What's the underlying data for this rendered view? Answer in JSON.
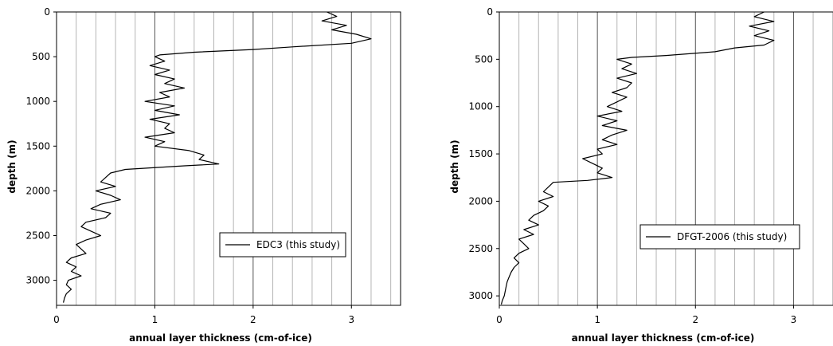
{
  "chart_data": [
    {
      "type": "line",
      "xlabel": "annual layer thickness (cm-of-ice)",
      "ylabel": "depth (m)",
      "xlim": [
        0,
        3.5
      ],
      "ylim": [
        3280,
        0
      ],
      "x_major_ticks": [
        0,
        1,
        2,
        3
      ],
      "x_gridlines_every": 0.2,
      "y_ticks": [
        0,
        500,
        1000,
        1500,
        2000,
        2500,
        3000
      ],
      "grid": "vertical",
      "legend_position": "center-right",
      "series": [
        {
          "name": "EDC3 (this study)",
          "color": "#000000",
          "y": [
            0,
            50,
            100,
            150,
            200,
            250,
            300,
            350,
            390,
            420,
            450,
            480,
            500,
            550,
            600,
            650,
            700,
            750,
            800,
            850,
            900,
            950,
            1000,
            1050,
            1100,
            1150,
            1200,
            1250,
            1300,
            1350,
            1400,
            1450,
            1500,
            1550,
            1600,
            1650,
            1700,
            1720,
            1760,
            1800,
            1850,
            1900,
            1950,
            2000,
            2050,
            2100,
            2150,
            2200,
            2250,
            2300,
            2350,
            2400,
            2450,
            2500,
            2550,
            2600,
            2650,
            2700,
            2750,
            2800,
            2850,
            2900,
            2950,
            3000,
            3050,
            3100,
            3150,
            3200,
            3250
          ],
          "values": [
            2.75,
            2.85,
            2.7,
            2.95,
            2.8,
            3.05,
            3.2,
            3.0,
            2.4,
            2.0,
            1.4,
            1.05,
            1.0,
            1.1,
            0.95,
            1.15,
            1.0,
            1.2,
            1.1,
            1.3,
            1.05,
            1.15,
            0.9,
            1.2,
            1.0,
            1.25,
            0.95,
            1.15,
            1.1,
            1.2,
            0.9,
            1.1,
            1.0,
            1.35,
            1.5,
            1.45,
            1.65,
            1.3,
            0.7,
            0.55,
            0.5,
            0.45,
            0.6,
            0.4,
            0.55,
            0.65,
            0.45,
            0.35,
            0.55,
            0.5,
            0.3,
            0.25,
            0.35,
            0.45,
            0.3,
            0.2,
            0.25,
            0.3,
            0.15,
            0.1,
            0.2,
            0.15,
            0.25,
            0.12,
            0.1,
            0.15,
            0.1,
            0.08,
            0.07
          ]
        }
      ]
    },
    {
      "type": "line",
      "xlabel": "annual layer thickness (cm-of-ice)",
      "ylabel": "depth (m)",
      "xlim": [
        0,
        3.5
      ],
      "ylim": [
        3100,
        0
      ],
      "x_major_ticks": [
        0,
        1,
        2,
        3
      ],
      "x_gridlines_every": 0.2,
      "y_ticks": [
        0,
        500,
        1000,
        1500,
        2000,
        2500,
        3000
      ],
      "grid": "vertical",
      "legend_position": "center-right",
      "series": [
        {
          "name": "DFGT-2006 (this study)",
          "color": "#000000",
          "y": [
            0,
            50,
            100,
            150,
            200,
            250,
            300,
            350,
            380,
            420,
            460,
            480,
            500,
            550,
            600,
            650,
            700,
            750,
            800,
            850,
            900,
            950,
            1000,
            1050,
            1100,
            1150,
            1200,
            1250,
            1300,
            1350,
            1400,
            1450,
            1500,
            1550,
            1600,
            1650,
            1700,
            1750,
            1780,
            1800,
            1850,
            1900,
            1950,
            2000,
            2050,
            2100,
            2150,
            2200,
            2250,
            2300,
            2350,
            2400,
            2450,
            2500,
            2550,
            2600,
            2650,
            2700,
            2750,
            2800,
            2850,
            2900,
            2950,
            3000,
            3050,
            3090
          ],
          "values": [
            2.7,
            2.6,
            2.8,
            2.55,
            2.75,
            2.6,
            2.8,
            2.7,
            2.4,
            2.2,
            1.7,
            1.35,
            1.2,
            1.35,
            1.25,
            1.4,
            1.2,
            1.35,
            1.3,
            1.15,
            1.3,
            1.2,
            1.1,
            1.25,
            1.0,
            1.2,
            1.05,
            1.3,
            1.15,
            1.05,
            1.2,
            1.0,
            1.05,
            0.85,
            0.95,
            1.05,
            1.0,
            1.15,
            0.9,
            0.55,
            0.5,
            0.45,
            0.55,
            0.4,
            0.5,
            0.45,
            0.35,
            0.3,
            0.4,
            0.25,
            0.35,
            0.2,
            0.25,
            0.3,
            0.2,
            0.15,
            0.2,
            0.15,
            0.12,
            0.1,
            0.08,
            0.07,
            0.06,
            0.05,
            0.03,
            0.02
          ]
        }
      ]
    }
  ]
}
